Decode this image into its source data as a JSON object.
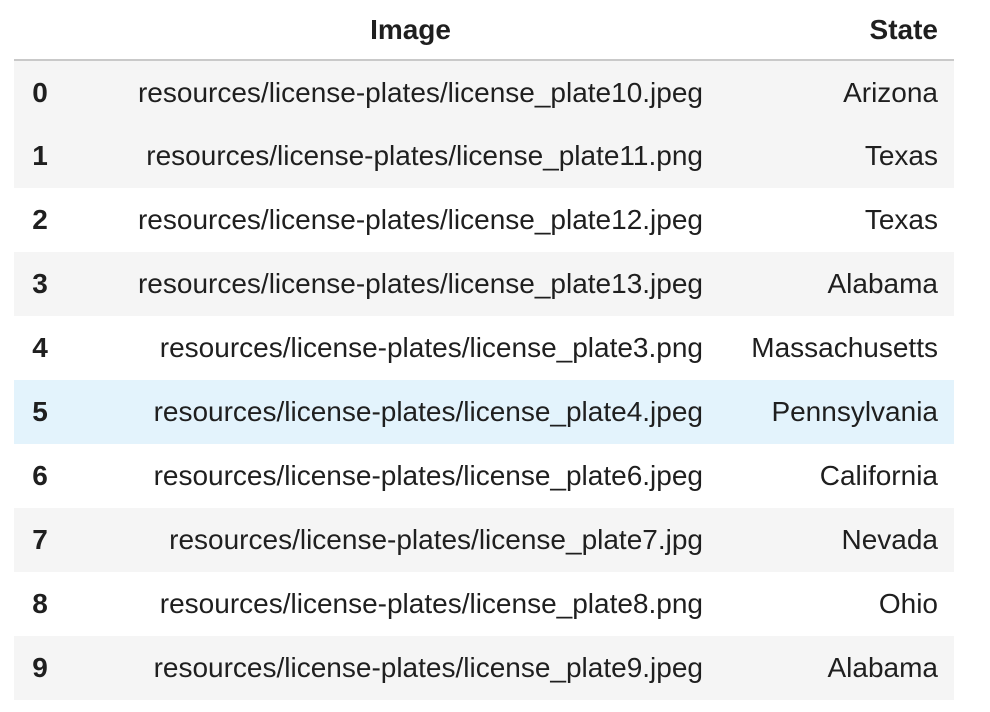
{
  "table": {
    "columns": {
      "index": "",
      "image": "Image",
      "state": "State"
    },
    "rows": [
      {
        "index": "0",
        "image": "resources/license-plates/license_plate10.jpeg",
        "state": "Arizona"
      },
      {
        "index": "1",
        "image": "resources/license-plates/license_plate11.png",
        "state": "Texas"
      },
      {
        "index": "2",
        "image": "resources/license-plates/license_plate12.jpeg",
        "state": "Texas"
      },
      {
        "index": "3",
        "image": "resources/license-plates/license_plate13.jpeg",
        "state": "Alabama"
      },
      {
        "index": "4",
        "image": "resources/license-plates/license_plate3.png",
        "state": "Massachusetts"
      },
      {
        "index": "5",
        "image": "resources/license-plates/license_plate4.jpeg",
        "state": "Pennsylvania"
      },
      {
        "index": "6",
        "image": "resources/license-plates/license_plate6.jpeg",
        "state": "California"
      },
      {
        "index": "7",
        "image": "resources/license-plates/license_plate7.jpg",
        "state": "Nevada"
      },
      {
        "index": "8",
        "image": "resources/license-plates/license_plate8.png",
        "state": "Ohio"
      },
      {
        "index": "9",
        "image": "resources/license-plates/license_plate9.jpeg",
        "state": "Alabama"
      }
    ]
  },
  "colors": {
    "stripe": "#f5f5f5",
    "hover_highlight": "#e3f3fc",
    "header_border": "#c9c9c9"
  }
}
